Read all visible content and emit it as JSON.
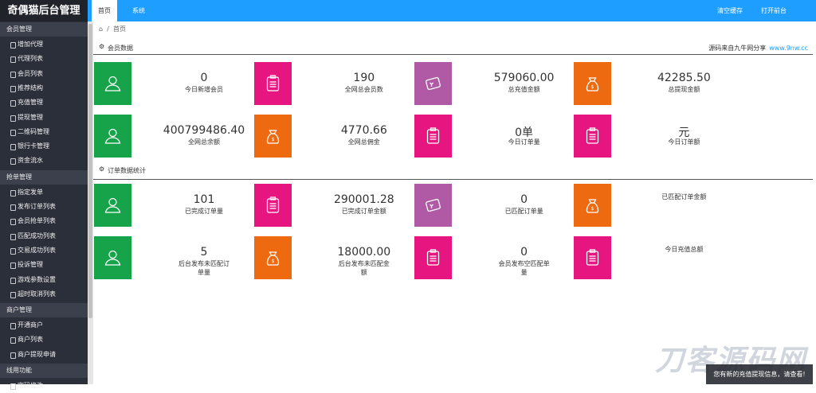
{
  "header": {
    "title": "奇偶猫后台管理",
    "tabs": [
      "首页",
      "系统"
    ],
    "actions": [
      "清空缓存",
      "打开前台"
    ]
  },
  "breadcrumb": "首页",
  "sidebar": [
    {
      "title": "会员管理",
      "items": [
        "增加代理",
        "代理列表",
        "会员列表",
        "推荐结构",
        "充值管理",
        "提现管理",
        "二维码管理",
        "银行卡管理",
        "资金流水"
      ]
    },
    {
      "title": "抢单管理",
      "items": [
        "指定发单",
        "发布订单列表",
        "会员抢单列表",
        "匹配成功列表",
        "交易成功列表",
        "投诉管理",
        "游戏参数设置",
        "超时取消列表"
      ]
    },
    {
      "title": "商户管理",
      "items": [
        "开通商户",
        "商户列表",
        "商户提现申请"
      ]
    },
    {
      "title": "线用功能",
      "items": [
        "密码修改"
      ]
    }
  ],
  "sections": [
    {
      "title": "会员数据",
      "note": "源码来自九牛网分享",
      "link": "www.9nw.cc",
      "cards": [
        {
          "value": "0",
          "label": "今日新增会员",
          "icon": "user",
          "color": "#17a34a"
        },
        {
          "value": "190",
          "label": "全网总会员数",
          "icon": "clip",
          "color": "#e6157f"
        },
        {
          "value": "579060.00",
          "label": "总充值金额",
          "icon": "card",
          "color": "#b05aa6"
        },
        {
          "value": "42285.50",
          "label": "总提现金额",
          "icon": "bag",
          "color": "#ee6a10"
        },
        {
          "value": "400799486.40",
          "label": "全网总余额",
          "icon": "user",
          "color": "#17a34a"
        },
        {
          "value": "4770.66",
          "label": "全网总佣金",
          "icon": "bag",
          "color": "#ee6a10"
        },
        {
          "value": "0单",
          "label": "今日订单量",
          "icon": "clip",
          "color": "#e6157f"
        },
        {
          "value": "元",
          "label": "今日订单额",
          "icon": "clip",
          "color": "#e6157f"
        }
      ]
    },
    {
      "title": "订单数据统计",
      "cards": [
        {
          "value": "101",
          "label": "已完成订单量",
          "icon": "user",
          "color": "#17a34a"
        },
        {
          "value": "290001.28",
          "label": "已完成订单金额",
          "icon": "clip",
          "color": "#e6157f"
        },
        {
          "value": "0",
          "label": "已匹配订单量",
          "icon": "card",
          "color": "#b05aa6"
        },
        {
          "label": "已匹配订单金额",
          "icon": "bag",
          "color": "#ee6a10"
        },
        {
          "value": "5",
          "label": "后台发布未匹配订单量",
          "icon": "user",
          "color": "#17a34a"
        },
        {
          "value": "18000.00",
          "label": "后台发布未匹配金额",
          "icon": "bag",
          "color": "#ee6a10"
        },
        {
          "value": "0",
          "label": "会员发布空匹配单量",
          "icon": "clip",
          "color": "#e6157f"
        },
        {
          "label": "今日充值总额",
          "icon": "clip",
          "color": "#e6157f"
        }
      ]
    }
  ],
  "watermark": "刀客源码网",
  "toast": "您有新的充值提现信息，请查看!"
}
